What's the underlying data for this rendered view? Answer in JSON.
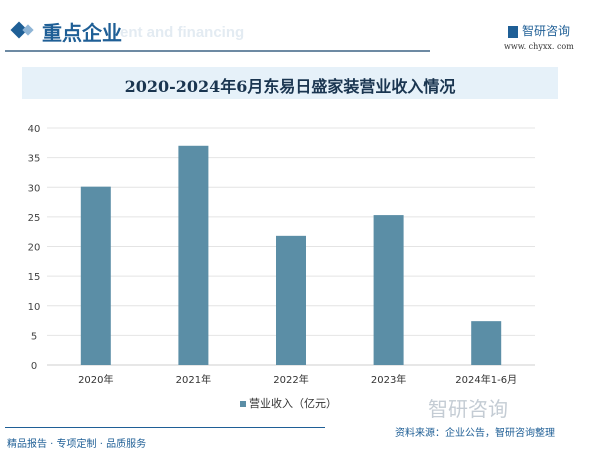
{
  "header": {
    "title": "重点企业",
    "subtitle": "ent and financing",
    "logo": "智研咨询",
    "url": "www. chyxx. com"
  },
  "footer": {
    "tagline": "精品报告 · 专项定制 · 品质服务",
    "source": "资料来源：企业公告，智研咨询整理",
    "logo": "智研咨询"
  },
  "colors": {
    "bar": "#5b8ea6",
    "accent": "#1f5f96"
  },
  "chart_data": {
    "type": "bar",
    "title": "2020-2024年6月东易日盛家装营业收入情况",
    "categories": [
      "2020年",
      "2021年",
      "2022年",
      "2023年",
      "2024年1-6月"
    ],
    "series": [
      {
        "name": "营业收入（亿元）",
        "values": [
          30.1,
          37.0,
          21.8,
          25.3,
          7.4
        ]
      }
    ],
    "yticks": [
      0,
      5,
      10,
      15,
      20,
      25,
      30,
      35,
      40
    ],
    "ylim": [
      0,
      40
    ],
    "grid": true,
    "legend": "bottom"
  }
}
